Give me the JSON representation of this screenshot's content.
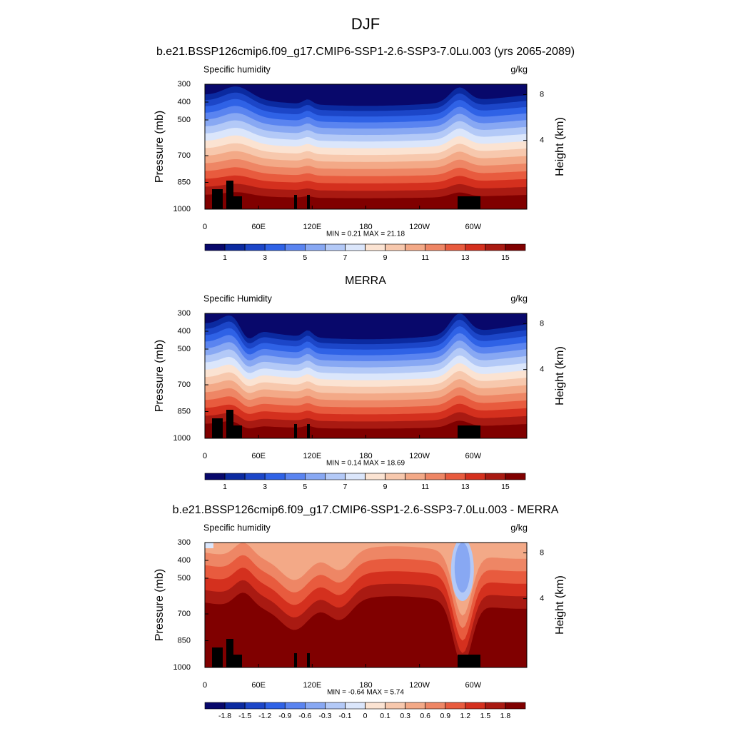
{
  "title": "DJF",
  "chart_data": [
    {
      "type": "contour",
      "title": "b.e21.BSSP126cmip6.f09_g17.CMIP6-SSP1-2.6-SSP3-7.0Lu.003 (yrs 2065-2089)",
      "left_label": "Specific humidity",
      "right_label": "g/kg",
      "ylabel": "Pressure (mb)",
      "y2label": "Height (km)",
      "xlim": [
        0,
        360
      ],
      "xticks": [
        0,
        {
          "value": 60,
          "label": "60E"
        },
        {
          "value": 120,
          "label": "120E"
        },
        180,
        {
          "value": 240,
          "label": "120W"
        },
        {
          "value": 300,
          "label": "60W"
        }
      ],
      "ylim": [
        1000,
        300
      ],
      "yticks": [
        300,
        400,
        500,
        700,
        850,
        1000
      ],
      "y2lim": [
        -2,
        8.9
      ],
      "y2ticks": [
        4,
        8
      ],
      "stats": "MIN =   0.21  MAX =  21.18",
      "colorbar": {
        "colors": [
          "#08086b",
          "#0b2aa0",
          "#1c46c8",
          "#2f62e6",
          "#5a84f0",
          "#88a8f3",
          "#b3c9f7",
          "#dbe6fb",
          "#fbe3d2",
          "#f7c8ad",
          "#f3a987",
          "#ee8665",
          "#e85b3e",
          "#d4301e",
          "#a91a12",
          "#800000"
        ],
        "levels": [
          1,
          2,
          3,
          4,
          5,
          6,
          7,
          8,
          9,
          10,
          11,
          12,
          13,
          14,
          15
        ],
        "ticks": [
          1,
          3,
          5,
          7,
          9,
          11,
          13,
          15
        ]
      }
    },
    {
      "type": "contour",
      "title": "MERRA",
      "left_label": "Specific Humidity",
      "right_label": "g/kg",
      "ylabel": "Pressure (mb)",
      "y2label": "Height (km)",
      "xlim": [
        0,
        360
      ],
      "xticks": [
        0,
        {
          "value": 60,
          "label": "60E"
        },
        {
          "value": 120,
          "label": "120E"
        },
        180,
        {
          "value": 240,
          "label": "120W"
        },
        {
          "value": 300,
          "label": "60W"
        }
      ],
      "ylim": [
        1000,
        300
      ],
      "yticks": [
        300,
        400,
        500,
        700,
        850,
        1000
      ],
      "y2lim": [
        -2,
        8.9
      ],
      "y2ticks": [
        4,
        8
      ],
      "stats": "MIN =   0.14  MAX =  18.69",
      "colorbar": {
        "colors": [
          "#08086b",
          "#0b2aa0",
          "#1c46c8",
          "#2f62e6",
          "#5a84f0",
          "#88a8f3",
          "#b3c9f7",
          "#dbe6fb",
          "#fbe3d2",
          "#f7c8ad",
          "#f3a987",
          "#ee8665",
          "#e85b3e",
          "#d4301e",
          "#a91a12",
          "#800000"
        ],
        "levels": [
          1,
          2,
          3,
          4,
          5,
          6,
          7,
          8,
          9,
          10,
          11,
          12,
          13,
          14,
          15
        ],
        "ticks": [
          1,
          3,
          5,
          7,
          9,
          11,
          13,
          15
        ]
      }
    },
    {
      "type": "contour",
      "title": "b.e21.BSSP126cmip6.f09_g17.CMIP6-SSP1-2.6-SSP3-7.0Lu.003 - MERRA",
      "left_label": "Specific humidity",
      "right_label": "g/kg",
      "ylabel": "Pressure (mb)",
      "y2label": "Height (km)",
      "xlim": [
        0,
        360
      ],
      "xticks": [
        0,
        {
          "value": 60,
          "label": "60E"
        },
        {
          "value": 120,
          "label": "120E"
        },
        180,
        {
          "value": 240,
          "label": "120W"
        },
        {
          "value": 300,
          "label": "60W"
        }
      ],
      "ylim": [
        1000,
        300
      ],
      "yticks": [
        300,
        400,
        500,
        700,
        850,
        1000
      ],
      "y2lim": [
        -2,
        8.9
      ],
      "y2ticks": [
        4,
        8
      ],
      "stats": "MIN =  -0.64  MAX =   5.74",
      "colorbar": {
        "colors": [
          "#08086b",
          "#0b2aa0",
          "#1c46c8",
          "#2f62e6",
          "#5a84f0",
          "#88a8f3",
          "#b3c9f7",
          "#dbe6fb",
          "#fbe3d2",
          "#f7c8ad",
          "#f3a987",
          "#ee8665",
          "#e85b3e",
          "#d4301e",
          "#a91a12",
          "#800000"
        ],
        "levels": [
          -1.8,
          -1.5,
          -1.2,
          -0.9,
          -0.6,
          -0.3,
          -0.1,
          0,
          0.1,
          0.3,
          0.6,
          0.9,
          1.2,
          1.5,
          1.8
        ],
        "ticks": [
          -1.8,
          -1.5,
          -1.2,
          -0.9,
          -0.6,
          -0.3,
          -0.1,
          0,
          0.1,
          0.3,
          0.6,
          0.9,
          1.2,
          1.5,
          1.8
        ]
      }
    }
  ]
}
